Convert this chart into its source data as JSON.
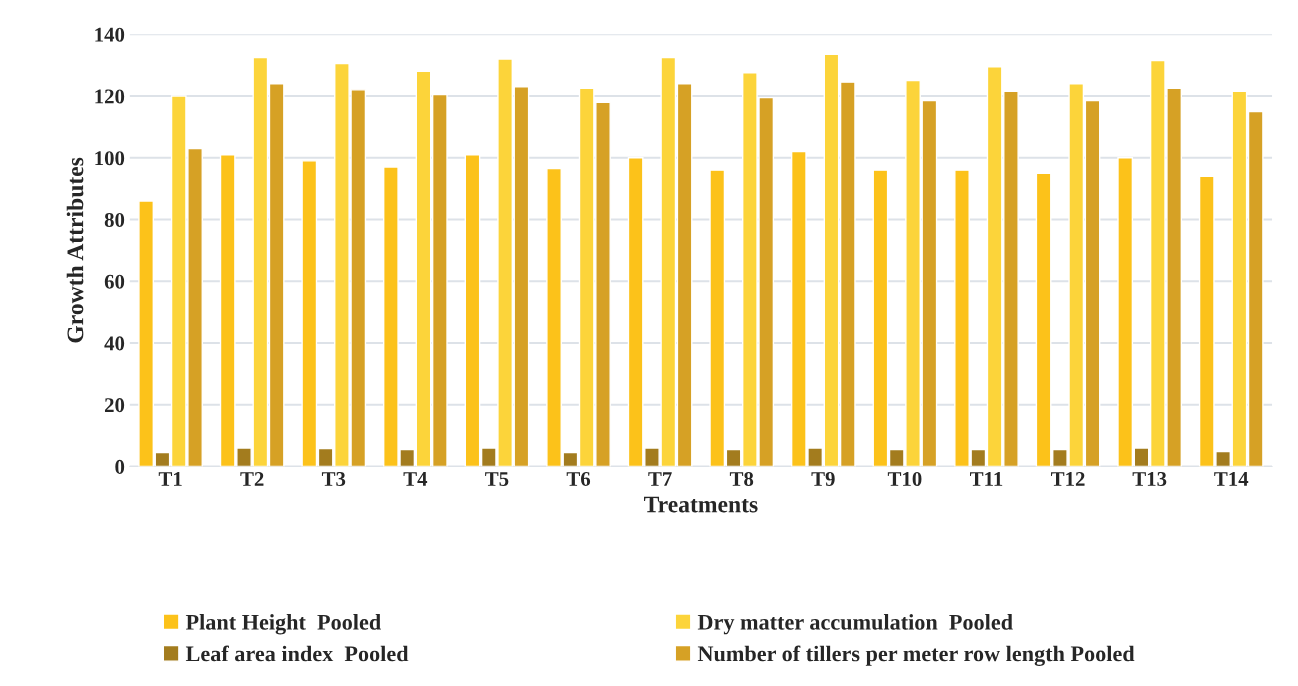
{
  "chart_data": {
    "type": "bar",
    "xlabel": "Treatments",
    "ylabel": "Growth Attributes",
    "categories": [
      "T1",
      "T2",
      "T3",
      "T4",
      "T5",
      "T6",
      "T7",
      "T8",
      "T9",
      "T10",
      "T11",
      "T12",
      "T13",
      "T14"
    ],
    "series": [
      {
        "name": "Plant Height  Pooled",
        "color": "#fcc21a",
        "values": [
          86,
          101,
          99,
          97,
          101,
          96.5,
          100,
          96,
          102,
          96,
          96,
          95,
          100,
          94
        ]
      },
      {
        "name": "Leaf area index  Pooled",
        "color": "#a37c1e",
        "values": [
          4.5,
          6,
          5.8,
          5.5,
          6,
          4.5,
          6,
          5.5,
          6,
          5.5,
          5.5,
          5.5,
          6,
          4.8
        ]
      },
      {
        "name": "Dry matter accumulation  Pooled",
        "color": "#fcd43a",
        "values": [
          120,
          132.5,
          130.5,
          128,
          132,
          122.5,
          132.5,
          127.5,
          133.5,
          125,
          129.5,
          124,
          131.5,
          121.5
        ]
      },
      {
        "name": "Number of tillers per meter row length Pooled",
        "color": "#d6a125",
        "values": [
          103,
          124,
          122,
          120.5,
          123,
          118,
          124,
          119.5,
          124.5,
          118.5,
          121.5,
          118.5,
          122.5,
          115
        ]
      }
    ],
    "ylim": [
      0,
      140
    ],
    "yticks": [
      0,
      20,
      40,
      60,
      80,
      100,
      120,
      140
    ],
    "grid": "y",
    "legend": "bottom"
  }
}
